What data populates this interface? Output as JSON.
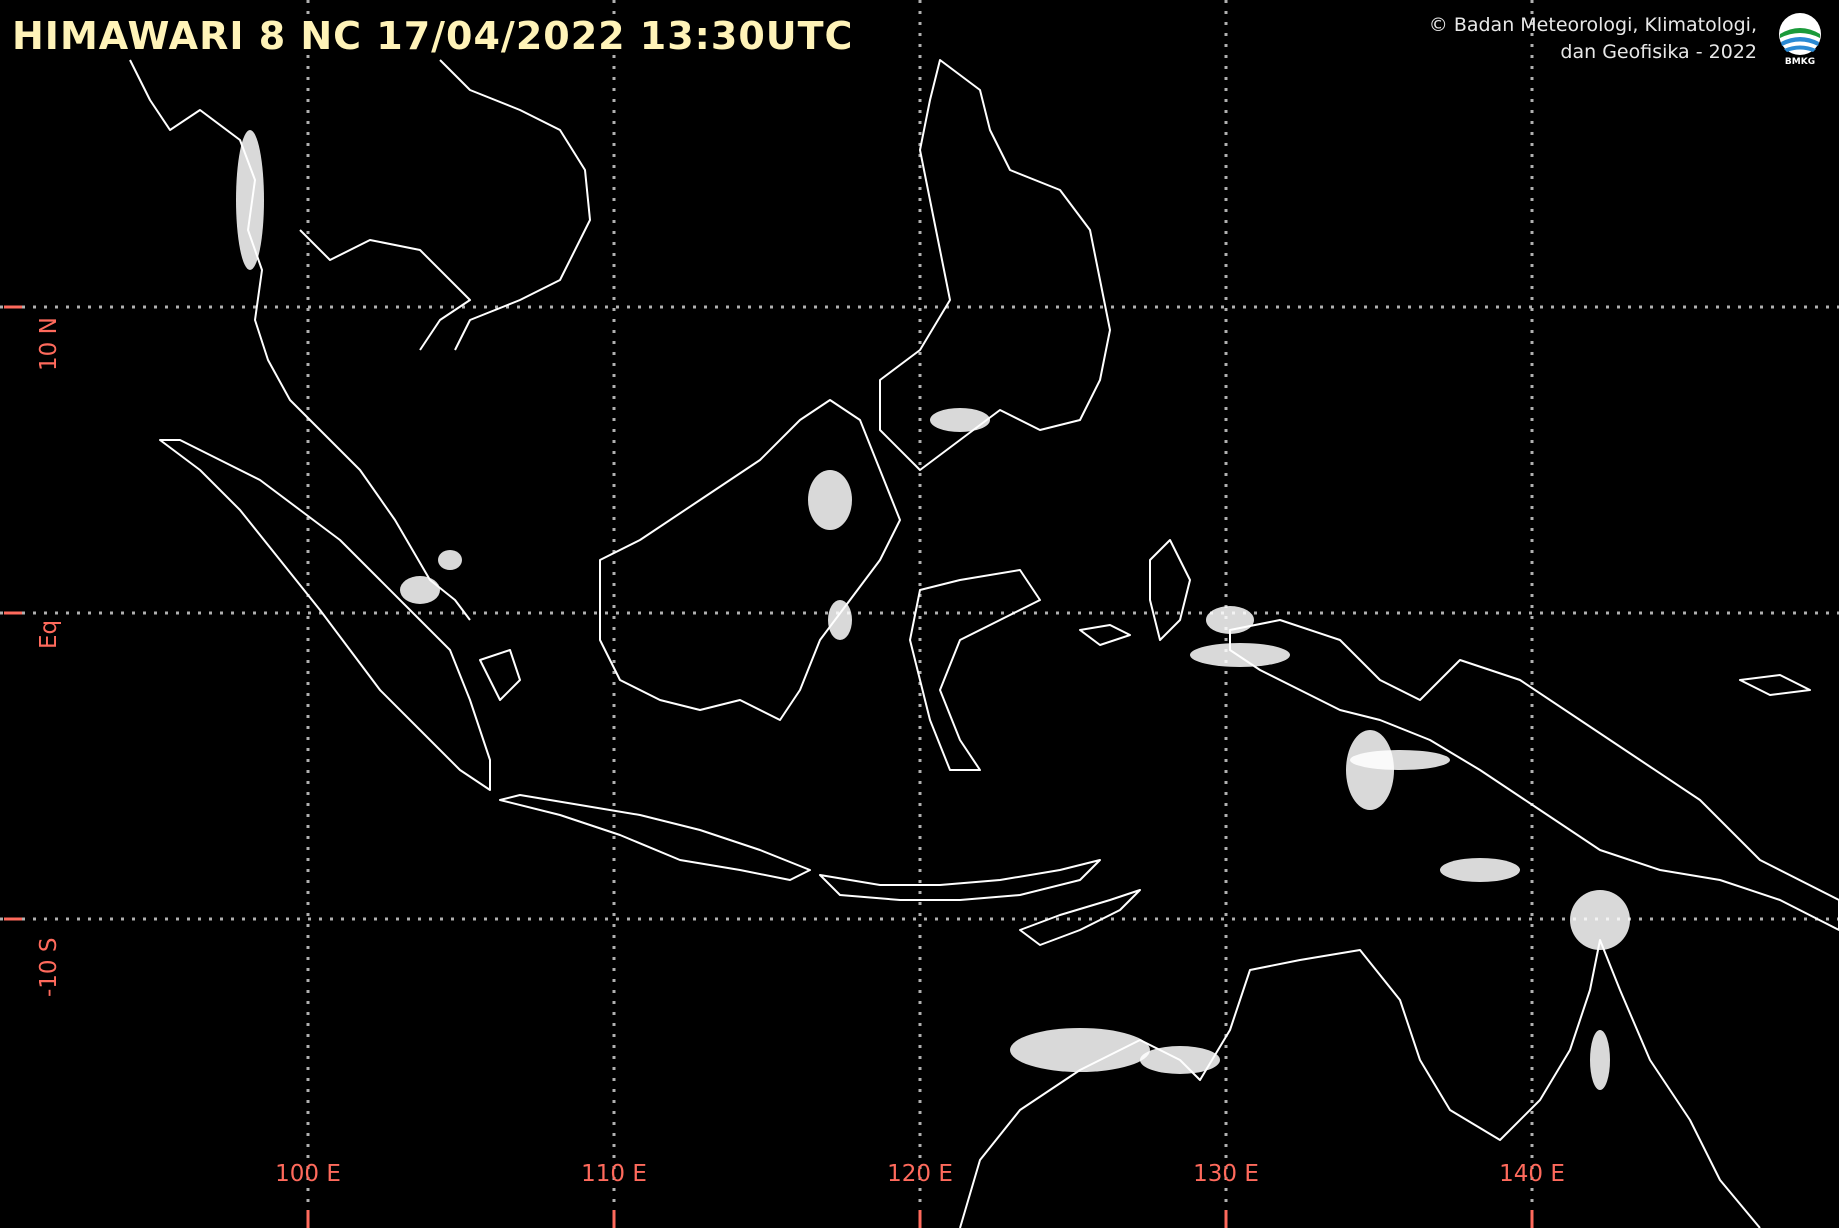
{
  "header": {
    "title": "HIMAWARI 8 NC 17/04/2022 13:30UTC",
    "credit_line1": "© Badan Meteorologi, Klimatologi,",
    "credit_line2": "dan Geofisika -  2022",
    "logo_text": "BMKG"
  },
  "grid": {
    "longitudes": [
      {
        "value": 100,
        "label": "100 E"
      },
      {
        "value": 110,
        "label": "110 E"
      },
      {
        "value": 120,
        "label": "120 E"
      },
      {
        "value": 130,
        "label": "130 E"
      },
      {
        "value": 140,
        "label": "140 E"
      }
    ],
    "latitudes": [
      {
        "value": 10,
        "label": "10 N"
      },
      {
        "value": 0,
        "label": "Eq"
      },
      {
        "value": -10,
        "label": "-10 S"
      }
    ]
  },
  "colors": {
    "background": "#000000",
    "coastline": "#ffffff",
    "cloud": "#ffffff",
    "grid": "#b0b0b0",
    "axis_label": "#ff6a5c",
    "title": "#fff3b8"
  }
}
